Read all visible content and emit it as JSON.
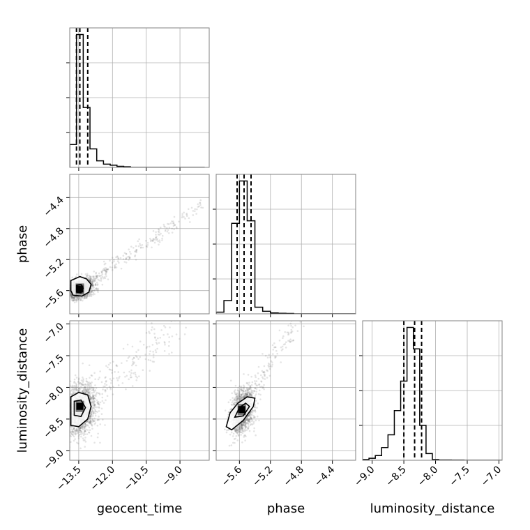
{
  "colors": {
    "background": "#ffffff",
    "frame": "#808080",
    "grid": "#b0b0b0",
    "line": "#000000",
    "scatter": "#555555"
  },
  "chart_data": {
    "type": "scatter",
    "title": "",
    "parameters": [
      "geocent_time",
      "phase",
      "luminosity_distance"
    ],
    "grid": true,
    "ranges": {
      "geocent_time": [
        -13.9,
        -7.7
      ],
      "phase": [
        -5.9,
        -4.1
      ],
      "luminosity_distance": [
        -9.15,
        -6.95
      ]
    },
    "ticks": {
      "geocent_time": [
        "−13.5",
        "−12.0",
        "−10.5",
        "−9.0"
      ],
      "phase": [
        "−5.6",
        "−5.2",
        "−4.8",
        "−4.4"
      ],
      "luminosity_distance": [
        "−9.0",
        "−8.5",
        "−8.0",
        "−7.5",
        "−7.0"
      ]
    },
    "tick_values": {
      "geocent_time": [
        -13.5,
        -12.0,
        -10.5,
        -9.0
      ],
      "phase": [
        -5.6,
        -5.2,
        -4.8,
        -4.4
      ],
      "luminosity_distance": [
        -9.0,
        -8.5,
        -8.0,
        -7.5,
        -7.0
      ]
    },
    "quantiles": {
      "geocent_time": [
        -13.6,
        -13.45,
        -13.1
      ],
      "phase": [
        -5.63,
        -5.54,
        -5.45
      ],
      "luminosity_distance": [
        -8.5,
        -8.33,
        -8.22
      ]
    },
    "histograms": {
      "geocent_time": {
        "bin_edges": [
          -13.9,
          -13.6,
          -13.3,
          -13.0,
          -12.7,
          -12.4,
          -12.1,
          -11.8,
          -11.5,
          -11.2,
          -10.9,
          -10.6,
          -10.3,
          -10.0,
          -9.7,
          -9.4,
          -9.1,
          -8.8,
          -8.5,
          -8.2,
          -7.9
        ],
        "counts": [
          105,
          610,
          275,
          85,
          30,
          15,
          10,
          5,
          3,
          0,
          0,
          0,
          0,
          0,
          0,
          0,
          0,
          0,
          0,
          0
        ]
      },
      "phase": {
        "bin_edges": [
          -5.9,
          -5.8,
          -5.7,
          -5.6,
          -5.5,
          -5.4,
          -5.3,
          -5.2,
          -5.1,
          -5.0,
          -4.9,
          -4.8,
          -4.7,
          -4.6,
          -4.5,
          -4.4,
          -4.3,
          -4.2,
          -4.1
        ],
        "counts": [
          10,
          80,
          545,
          800,
          560,
          40,
          15,
          5,
          3,
          2,
          0,
          0,
          0,
          0,
          0,
          0,
          0,
          0
        ]
      },
      "luminosity_distance": {
        "bin_edges": [
          -9.15,
          -9.05,
          -8.95,
          -8.85,
          -8.75,
          -8.65,
          -8.55,
          -8.45,
          -8.35,
          -8.25,
          -8.15,
          -8.05,
          -7.95,
          -7.85,
          -7.75,
          -7.65,
          -7.55,
          -7.45,
          -7.35,
          -7.25,
          -7.15,
          -7.05,
          -6.95
        ],
        "counts": [
          5,
          15,
          35,
          95,
          190,
          370,
          590,
          990,
          830,
          260,
          50,
          5,
          2,
          2,
          1,
          1,
          0,
          0,
          0,
          0,
          0,
          0
        ]
      }
    },
    "scatter_panels": [
      {
        "x": "geocent_time",
        "y": "phase",
        "center": [
          -13.45,
          -5.58
        ],
        "spread": [
          0.3,
          0.06
        ],
        "slope": 0.2,
        "peak": [
          -13.45,
          -5.58
        ],
        "contours": [
          [
            [
              -13.85,
              -5.47
            ],
            [
              -13.45,
              -5.42
            ],
            [
              -13.15,
              -5.45
            ],
            [
              -12.95,
              -5.52
            ],
            [
              -13.05,
              -5.62
            ],
            [
              -13.35,
              -5.67
            ],
            [
              -13.75,
              -5.66
            ],
            [
              -13.85,
              -5.6
            ]
          ],
          [
            [
              -13.6,
              -5.53
            ],
            [
              -13.4,
              -5.52
            ],
            [
              -13.3,
              -5.57
            ],
            [
              -13.4,
              -5.63
            ],
            [
              -13.6,
              -5.62
            ]
          ]
        ]
      },
      {
        "x": "geocent_time",
        "y": "luminosity_distance",
        "center": [
          -13.45,
          -8.35
        ],
        "spread": [
          0.35,
          0.2
        ],
        "slope": 0.3,
        "peak": [
          -13.45,
          -8.3
        ],
        "contours": [
          [
            [
              -13.85,
              -8.15
            ],
            [
              -13.5,
              -8.08
            ],
            [
              -13.1,
              -8.12
            ],
            [
              -12.95,
              -8.3
            ],
            [
              -13.1,
              -8.5
            ],
            [
              -13.5,
              -8.62
            ],
            [
              -13.85,
              -8.6
            ]
          ],
          [
            [
              -13.7,
              -8.22
            ],
            [
              -13.4,
              -8.2
            ],
            [
              -13.2,
              -8.32
            ],
            [
              -13.4,
              -8.46
            ],
            [
              -13.7,
              -8.44
            ]
          ]
        ]
      },
      {
        "x": "phase",
        "y": "luminosity_distance",
        "center": [
          -5.57,
          -8.38
        ],
        "spread": [
          0.07,
          0.16
        ],
        "slope": 2.0,
        "peak": [
          -5.57,
          -8.35
        ],
        "contours": [
          [
            [
              -5.77,
              -8.62
            ],
            [
              -5.72,
              -8.4
            ],
            [
              -5.62,
              -8.25
            ],
            [
              -5.5,
              -8.15
            ],
            [
              -5.4,
              -8.17
            ],
            [
              -5.42,
              -8.3
            ],
            [
              -5.55,
              -8.52
            ],
            [
              -5.7,
              -8.67
            ]
          ],
          [
            [
              -5.66,
              -8.47
            ],
            [
              -5.6,
              -8.32
            ],
            [
              -5.52,
              -8.25
            ],
            [
              -5.47,
              -8.3
            ],
            [
              -5.55,
              -8.45
            ]
          ]
        ]
      }
    ]
  }
}
